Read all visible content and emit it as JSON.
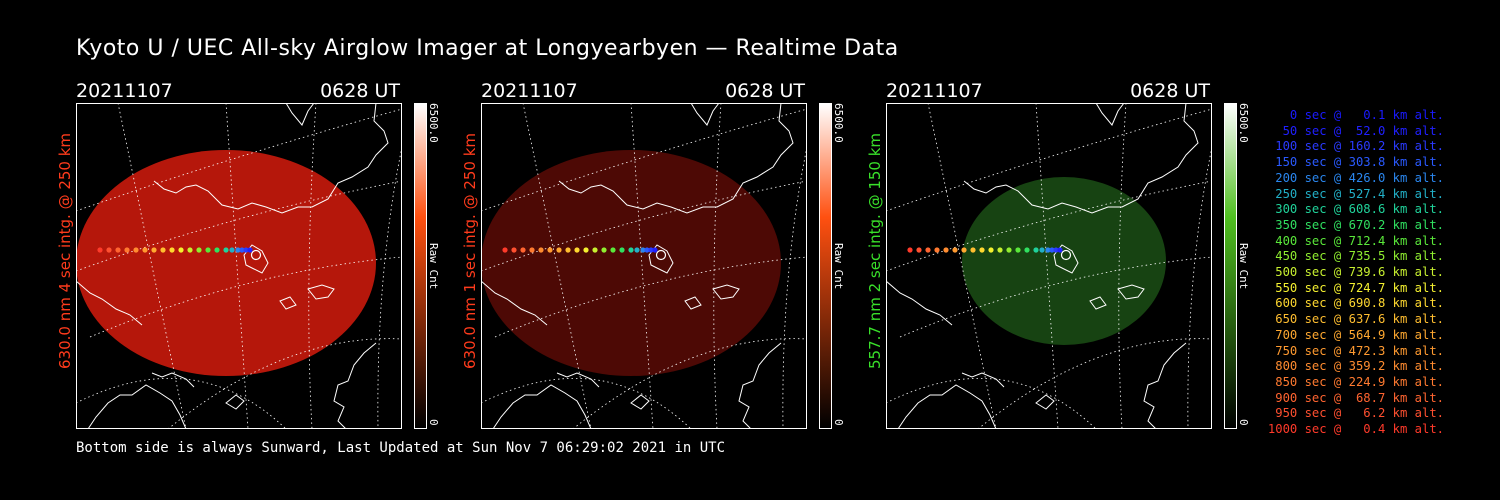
{
  "title": "Kyoto U / UEC All-sky Airglow Imager at Longyearbyen — Realtime Data",
  "panels": [
    {
      "date": "20211107",
      "time": "0628 UT",
      "ylabel": "630.0 nm 4 sec intg. @ 250 km",
      "label_color": "#ff3b1c",
      "glow_color": "#c4190c",
      "glow_opacity": 0.92,
      "cbar_max": "6500.0",
      "cbar_unit": "Raw Cnt",
      "cbar_min": "0",
      "cbar_top": "#ffffff",
      "cbar_mid": "#ff5010",
      "cbar_bottom": "#000000"
    },
    {
      "date": "20211107",
      "time": "0628 UT",
      "ylabel": "630.0 nm 1 sec intg. @ 250 km",
      "label_color": "#ff3b1c",
      "glow_color": "#5a0a06",
      "glow_opacity": 0.85,
      "cbar_max": "6500.0",
      "cbar_unit": "Raw Cnt",
      "cbar_min": "0",
      "cbar_top": "#ffffff",
      "cbar_mid": "#ff5010",
      "cbar_bottom": "#000000"
    },
    {
      "date": "20211107",
      "time": "0628 UT",
      "ylabel": "557.7 nm 2 sec intg. @ 150 km",
      "label_color": "#39e02a",
      "glow_color": "#1a4a14",
      "glow_opacity": 0.9,
      "cbar_max": "6500.0",
      "cbar_unit": "Raw Cnt",
      "cbar_min": "0",
      "cbar_top": "#ffffff",
      "cbar_mid": "#4fbf20",
      "cbar_bottom": "#000000"
    }
  ],
  "footer": "Bottom side is always Sunward, Last Updated at Sun Nov  7 06:29:02 2021 in UTC",
  "legend": [
    {
      "text": "0 sec @   0.1 km alt.",
      "color": "#1a1aff"
    },
    {
      "text": "50 sec @  52.0 km alt.",
      "color": "#2020ff"
    },
    {
      "text": "100 sec @ 160.2 km alt.",
      "color": "#2a3aff"
    },
    {
      "text": "150 sec @ 303.8 km alt.",
      "color": "#2a5aff"
    },
    {
      "text": "200 sec @ 426.0 km alt.",
      "color": "#2a86ee"
    },
    {
      "text": "250 sec @ 527.4 km alt.",
      "color": "#22b0c8"
    },
    {
      "text": "300 sec @ 608.6 km alt.",
      "color": "#20d29a"
    },
    {
      "text": "350 sec @ 670.2 km alt.",
      "color": "#30e060"
    },
    {
      "text": "400 sec @ 712.4 km alt.",
      "color": "#5ae83a"
    },
    {
      "text": "450 sec @ 735.5 km alt.",
      "color": "#90ee30"
    },
    {
      "text": "500 sec @ 739.6 km alt.",
      "color": "#c8f030"
    },
    {
      "text": "550 sec @ 724.7 km alt.",
      "color": "#f4f030"
    },
    {
      "text": "600 sec @ 690.8 km alt.",
      "color": "#ffd830"
    },
    {
      "text": "650 sec @ 637.6 km alt.",
      "color": "#ffbe30"
    },
    {
      "text": "700 sec @ 564.9 km alt.",
      "color": "#ffa830"
    },
    {
      "text": "750 sec @ 472.3 km alt.",
      "color": "#ff9a30"
    },
    {
      "text": "800 sec @ 359.2 km alt.",
      "color": "#ff8c30"
    },
    {
      "text": "850 sec @ 224.9 km alt.",
      "color": "#ff7a30"
    },
    {
      "text": "900 sec @  68.7 km alt.",
      "color": "#ff6430"
    },
    {
      "text": "950 sec @   6.2 km alt.",
      "color": "#ff5030"
    },
    {
      "text": "1000 sec @   0.4 km alt.",
      "color": "#ff3a2a"
    }
  ]
}
